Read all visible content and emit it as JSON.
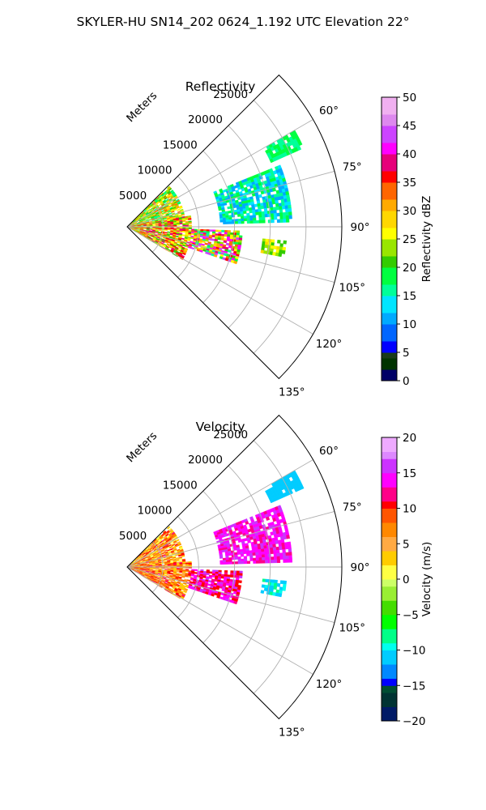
{
  "figure_title": "SKYLER-HU  SN14_202  0624_1.192 UTC Elevation 22°",
  "colors": {
    "grid": "#b0b0b0",
    "frame": "#000000",
    "background": "#ffffff"
  },
  "chart_data": [
    {
      "type": "heatmap",
      "projection": "polar-sector",
      "title": "Reflectivity",
      "range_label": "Meters",
      "range_ticks": [
        "5000",
        "10000",
        "15000",
        "20000",
        "25000"
      ],
      "range_tick_values": [
        5000,
        10000,
        15000,
        20000,
        25000
      ],
      "range_max": 30000,
      "azimuth_ticks": [
        "60°",
        "75°",
        "90°",
        "105°",
        "120°",
        "135°"
      ],
      "azimuth_tick_values": [
        60,
        75,
        90,
        105,
        120,
        135
      ],
      "azimuth_range": [
        45,
        135
      ],
      "grid": true,
      "colorbar": {
        "label": "Reflectivity dBZ",
        "vmin": 0,
        "vmax": 50,
        "ticks": [
          "0",
          "5",
          "10",
          "15",
          "20",
          "25",
          "30",
          "35",
          "40",
          "45",
          "50"
        ],
        "colormap": "pyart_NWSRef"
      },
      "echo_regions": [
        {
          "az": [
            46,
            80
          ],
          "range": [
            0,
            8000
          ],
          "dbz": [
            15,
            35
          ]
        },
        {
          "az": [
            80,
            120
          ],
          "range": [
            0,
            9000
          ],
          "dbz": [
            20,
            40
          ]
        },
        {
          "az": [
            92,
            108
          ],
          "range": [
            9000,
            16000
          ],
          "dbz": [
            15,
            45
          ]
        },
        {
          "az": [
            68,
            88
          ],
          "range": [
            13000,
            23000
          ],
          "dbz": [
            10,
            20
          ]
        },
        {
          "az": [
            95,
            100
          ],
          "range": [
            19000,
            22000
          ],
          "dbz": [
            20,
            30
          ]
        },
        {
          "az": [
            60,
            66
          ],
          "range": [
            22000,
            27000
          ],
          "dbz": [
            15,
            20
          ]
        }
      ]
    },
    {
      "type": "heatmap",
      "projection": "polar-sector",
      "title": "Velocity",
      "range_label": "Meters",
      "range_ticks": [
        "5000",
        "10000",
        "15000",
        "20000",
        "25000"
      ],
      "range_tick_values": [
        5000,
        10000,
        15000,
        20000,
        25000
      ],
      "range_max": 30000,
      "azimuth_ticks": [
        "60°",
        "75°",
        "90°",
        "105°",
        "120°",
        "135°"
      ],
      "azimuth_tick_values": [
        60,
        75,
        90,
        105,
        120,
        135
      ],
      "azimuth_range": [
        45,
        135
      ],
      "grid": true,
      "colorbar": {
        "label": "Velocity (m/s)",
        "vmin": -20,
        "vmax": 20,
        "ticks": [
          "−20",
          "−15",
          "−10",
          "−5",
          "0",
          "5",
          "10",
          "15",
          "20"
        ],
        "colormap": "pyart_NWSVel"
      },
      "echo_regions": [
        {
          "az": [
            46,
            85
          ],
          "range": [
            0,
            8000
          ],
          "vel": [
            0,
            12
          ]
        },
        {
          "az": [
            85,
            120
          ],
          "range": [
            0,
            9000
          ],
          "vel": [
            2,
            12
          ]
        },
        {
          "az": [
            92,
            108
          ],
          "range": [
            9000,
            16000
          ],
          "vel": [
            10,
            16
          ]
        },
        {
          "az": [
            68,
            88
          ],
          "range": [
            13000,
            23000
          ],
          "vel": [
            12,
            16
          ]
        },
        {
          "az": [
            95,
            100
          ],
          "range": [
            19000,
            22000
          ],
          "vel": [
            -12,
            -8
          ]
        },
        {
          "az": [
            60,
            66
          ],
          "range": [
            22000,
            27000
          ],
          "vel": [
            -12,
            -10
          ]
        }
      ]
    }
  ]
}
